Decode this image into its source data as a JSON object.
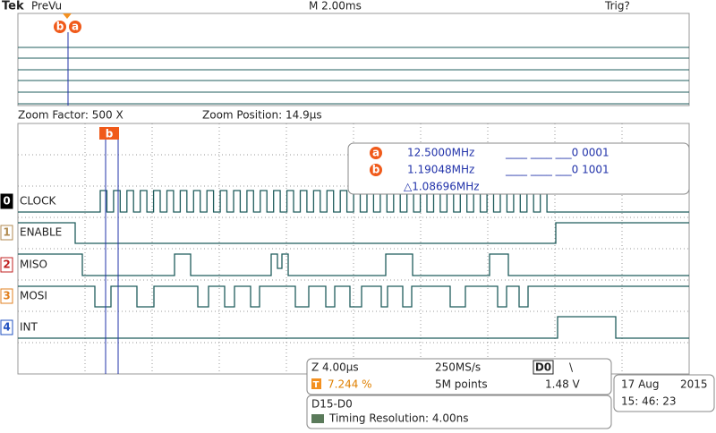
{
  "header": {
    "brand": "Tek",
    "mode": "PreVu",
    "timebase": "M 2.00ms",
    "trigger": "Trig?"
  },
  "overview": {
    "cursor_a": "a",
    "cursor_b": "b"
  },
  "zoom": {
    "factor": "Zoom Factor: 500 X",
    "position": "Zoom Position: 14.9µs"
  },
  "cursors": {
    "label_b": "b"
  },
  "readout": {
    "a_label": "a",
    "a_value": "12.5000MHz",
    "a_bits": "____ ____ ___0 0001",
    "b_label": "b",
    "b_value": "1.19048MHz",
    "b_bits": "____ ____ ___0 1001",
    "delta": "△1.08696MHz"
  },
  "channels": [
    {
      "number": "0",
      "name": "CLOCK"
    },
    {
      "number": "1",
      "name": "ENABLE"
    },
    {
      "number": "2",
      "name": "MISO"
    },
    {
      "number": "3",
      "name": "MOSI"
    },
    {
      "number": "4",
      "name": "INT"
    }
  ],
  "status": {
    "zoom_time": "Z 4.00µs",
    "sample_rate": "250MS/s",
    "trigger_source": "D0",
    "trigger_slope": "\\",
    "trigger_icon": "T",
    "trigger_pos": "7.244 %",
    "record_length": "5M points",
    "trigger_level": "1.48 V"
  },
  "bus": {
    "name": "D15-D0",
    "resolution": "Timing Resolution: 4.00ns"
  },
  "datetime": {
    "date": "17 Aug",
    "year": "2015",
    "time": "15: 46: 23"
  }
}
